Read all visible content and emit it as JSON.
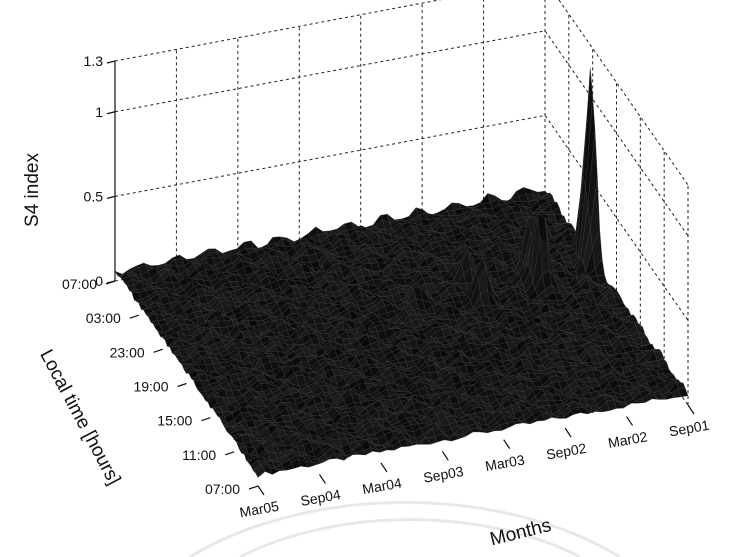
{
  "chart_data": {
    "type": "surface",
    "title": "",
    "xlabel": "Months",
    "ylabel": "Local time [hours]",
    "zlabel": "S4 index",
    "x_ticks": [
      "Mar05",
      "Sep04",
      "Mar04",
      "Sep03",
      "Mar03",
      "Sep02",
      "Mar02",
      "Sep01"
    ],
    "y_ticks": [
      "07:00",
      "11:00",
      "15:00",
      "19:00",
      "23:00",
      "03:00",
      "07:00"
    ],
    "z_ticks": [
      "0",
      "0.5",
      "1",
      "1.3"
    ],
    "zlim": [
      0,
      1.3
    ],
    "grid": true,
    "background_level": 0.05,
    "peaks": [
      {
        "month": "Sep01",
        "local_time": "23:30",
        "s4": 1.05
      },
      {
        "month": "Sep01",
        "local_time": "22:30",
        "s4": 0.6
      },
      {
        "month": "Mar02",
        "local_time": "21:30",
        "s4": 0.55
      },
      {
        "month": "Mar02",
        "local_time": "23:00",
        "s4": 0.4
      },
      {
        "month": "Sep02",
        "local_time": "21:00",
        "s4": 0.3
      },
      {
        "month": "Sep02",
        "local_time": "23:30",
        "s4": 0.2
      },
      {
        "month": "Mar03",
        "local_time": "22:00",
        "s4": 0.15
      }
    ]
  }
}
